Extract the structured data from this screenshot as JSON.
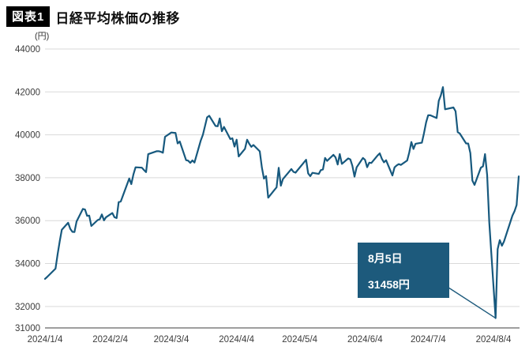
{
  "header": {
    "badge": "図表1",
    "title": "日経平均株価の推移"
  },
  "axis": {
    "unit_label": "(円)"
  },
  "annotation": {
    "line1": "8月5日",
    "line2": "31458円"
  },
  "colors": {
    "line": "#17597e",
    "annotation_bg": "#1d5a7c",
    "grid": "#d9d9d9",
    "axis": "#666666",
    "tick_text": "#3c3c3c"
  },
  "chart_data": {
    "type": "line",
    "title": "日経平均株価の推移",
    "ylabel": "(円)",
    "xlabel": "",
    "ylim": [
      31000,
      44000
    ],
    "grid": true,
    "legend": false,
    "series_name": "日経平均株価",
    "y_ticks": [
      44000,
      42000,
      40000,
      38000,
      36000,
      34000,
      32000,
      31000
    ],
    "x_ticks": [
      {
        "label": "2024/1/4",
        "date": "2024-01-04"
      },
      {
        "label": "2024/2/4",
        "date": "2024-02-04"
      },
      {
        "label": "2024/3/4",
        "date": "2024-03-04"
      },
      {
        "label": "2024/4/4",
        "date": "2024-04-04"
      },
      {
        "label": "2024/5/4",
        "date": "2024-05-04"
      },
      {
        "label": "2024/6/4",
        "date": "2024-06-04"
      },
      {
        "label": "2024/7/4",
        "date": "2024-07-04"
      },
      {
        "label": "2024/8/4",
        "date": "2024-08-04"
      }
    ],
    "annotated_point": {
      "date": "2024-08-05",
      "value": 31458
    },
    "points": [
      [
        "2024-01-04",
        33288
      ],
      [
        "2024-01-05",
        33377
      ],
      [
        "2024-01-09",
        33763
      ],
      [
        "2024-01-10",
        34441
      ],
      [
        "2024-01-11",
        35049
      ],
      [
        "2024-01-12",
        35577
      ],
      [
        "2024-01-15",
        35901
      ],
      [
        "2024-01-16",
        35619
      ],
      [
        "2024-01-17",
        35478
      ],
      [
        "2024-01-18",
        35466
      ],
      [
        "2024-01-19",
        35963
      ],
      [
        "2024-01-22",
        36546
      ],
      [
        "2024-01-23",
        36517
      ],
      [
        "2024-01-24",
        36226
      ],
      [
        "2024-01-25",
        36236
      ],
      [
        "2024-01-26",
        35751
      ],
      [
        "2024-01-29",
        36026
      ],
      [
        "2024-01-30",
        36065
      ],
      [
        "2024-01-31",
        36287
      ],
      [
        "2024-02-01",
        36011
      ],
      [
        "2024-02-02",
        36158
      ],
      [
        "2024-02-05",
        36354
      ],
      [
        "2024-02-06",
        36160
      ],
      [
        "2024-02-07",
        36119
      ],
      [
        "2024-02-08",
        36863
      ],
      [
        "2024-02-09",
        36897
      ],
      [
        "2024-02-13",
        37963
      ],
      [
        "2024-02-14",
        37703
      ],
      [
        "2024-02-15",
        38157
      ],
      [
        "2024-02-16",
        38487
      ],
      [
        "2024-02-19",
        38470
      ],
      [
        "2024-02-20",
        38363
      ],
      [
        "2024-02-21",
        38262
      ],
      [
        "2024-02-22",
        39098
      ],
      [
        "2024-02-26",
        39233
      ],
      [
        "2024-02-27",
        39239
      ],
      [
        "2024-02-28",
        39208
      ],
      [
        "2024-02-29",
        39166
      ],
      [
        "2024-03-01",
        39910
      ],
      [
        "2024-03-04",
        40109
      ],
      [
        "2024-03-05",
        40097
      ],
      [
        "2024-03-06",
        40090
      ],
      [
        "2024-03-07",
        39598
      ],
      [
        "2024-03-08",
        39688
      ],
      [
        "2024-03-11",
        38820
      ],
      [
        "2024-03-12",
        38797
      ],
      [
        "2024-03-13",
        38695
      ],
      [
        "2024-03-14",
        38807
      ],
      [
        "2024-03-15",
        38708
      ],
      [
        "2024-03-18",
        39740
      ],
      [
        "2024-03-19",
        40003
      ],
      [
        "2024-03-21",
        40815
      ],
      [
        "2024-03-22",
        40888
      ],
      [
        "2024-03-25",
        40414
      ],
      [
        "2024-03-26",
        40398
      ],
      [
        "2024-03-27",
        40762
      ],
      [
        "2024-03-28",
        40168
      ],
      [
        "2024-03-29",
        40369
      ],
      [
        "2024-04-01",
        39803
      ],
      [
        "2024-04-02",
        39839
      ],
      [
        "2024-04-03",
        39451
      ],
      [
        "2024-04-04",
        39773
      ],
      [
        "2024-04-05",
        38992
      ],
      [
        "2024-04-08",
        39347
      ],
      [
        "2024-04-09",
        39773
      ],
      [
        "2024-04-10",
        39581
      ],
      [
        "2024-04-11",
        39442
      ],
      [
        "2024-04-12",
        39524
      ],
      [
        "2024-04-15",
        39232
      ],
      [
        "2024-04-16",
        38471
      ],
      [
        "2024-04-17",
        37962
      ],
      [
        "2024-04-18",
        38079
      ],
      [
        "2024-04-19",
        37068
      ],
      [
        "2024-04-22",
        37439
      ],
      [
        "2024-04-23",
        37552
      ],
      [
        "2024-04-24",
        38460
      ],
      [
        "2024-04-25",
        37628
      ],
      [
        "2024-04-26",
        37935
      ],
      [
        "2024-04-30",
        38406
      ],
      [
        "2024-05-01",
        38274
      ],
      [
        "2024-05-02",
        38236
      ],
      [
        "2024-05-07",
        38835
      ],
      [
        "2024-05-08",
        38202
      ],
      [
        "2024-05-09",
        38074
      ],
      [
        "2024-05-10",
        38229
      ],
      [
        "2024-05-13",
        38179
      ],
      [
        "2024-05-14",
        38356
      ],
      [
        "2024-05-15",
        38385
      ],
      [
        "2024-05-16",
        38920
      ],
      [
        "2024-05-17",
        38787
      ],
      [
        "2024-05-20",
        39069
      ],
      [
        "2024-05-21",
        38947
      ],
      [
        "2024-05-22",
        38617
      ],
      [
        "2024-05-23",
        39103
      ],
      [
        "2024-05-24",
        38646
      ],
      [
        "2024-05-27",
        38900
      ],
      [
        "2024-05-28",
        38856
      ],
      [
        "2024-05-29",
        38557
      ],
      [
        "2024-05-30",
        38054
      ],
      [
        "2024-05-31",
        38488
      ],
      [
        "2024-06-03",
        38923
      ],
      [
        "2024-06-04",
        38837
      ],
      [
        "2024-06-05",
        38490
      ],
      [
        "2024-06-06",
        38703
      ],
      [
        "2024-06-07",
        38684
      ],
      [
        "2024-06-10",
        39038
      ],
      [
        "2024-06-11",
        39135
      ],
      [
        "2024-06-12",
        38877
      ],
      [
        "2024-06-13",
        38720
      ],
      [
        "2024-06-14",
        38814
      ],
      [
        "2024-06-17",
        38103
      ],
      [
        "2024-06-18",
        38482
      ],
      [
        "2024-06-19",
        38570
      ],
      [
        "2024-06-20",
        38633
      ],
      [
        "2024-06-21",
        38596
      ],
      [
        "2024-06-24",
        38805
      ],
      [
        "2024-06-25",
        39173
      ],
      [
        "2024-06-26",
        39667
      ],
      [
        "2024-06-27",
        39341
      ],
      [
        "2024-06-28",
        39583
      ],
      [
        "2024-07-01",
        39631
      ],
      [
        "2024-07-02",
        40075
      ],
      [
        "2024-07-03",
        40581
      ],
      [
        "2024-07-04",
        40914
      ],
      [
        "2024-07-05",
        40912
      ],
      [
        "2024-07-08",
        40781
      ],
      [
        "2024-07-09",
        41580
      ],
      [
        "2024-07-10",
        41832
      ],
      [
        "2024-07-11",
        42224
      ],
      [
        "2024-07-12",
        41190
      ],
      [
        "2024-07-16",
        41275
      ],
      [
        "2024-07-17",
        41098
      ],
      [
        "2024-07-18",
        40126
      ],
      [
        "2024-07-19",
        40064
      ],
      [
        "2024-07-22",
        39599
      ],
      [
        "2024-07-23",
        39595
      ],
      [
        "2024-07-24",
        39154
      ],
      [
        "2024-07-25",
        37869
      ],
      [
        "2024-07-26",
        37667
      ],
      [
        "2024-07-29",
        38468
      ],
      [
        "2024-07-30",
        38526
      ],
      [
        "2024-07-31",
        39102
      ],
      [
        "2024-08-01",
        38126
      ],
      [
        "2024-08-02",
        35910
      ],
      [
        "2024-08-05",
        31458
      ],
      [
        "2024-08-06",
        34675
      ],
      [
        "2024-08-07",
        35090
      ],
      [
        "2024-08-08",
        34831
      ],
      [
        "2024-08-09",
        35025
      ],
      [
        "2024-08-13",
        36232
      ],
      [
        "2024-08-14",
        36442
      ],
      [
        "2024-08-15",
        36726
      ],
      [
        "2024-08-16",
        38062
      ]
    ]
  }
}
